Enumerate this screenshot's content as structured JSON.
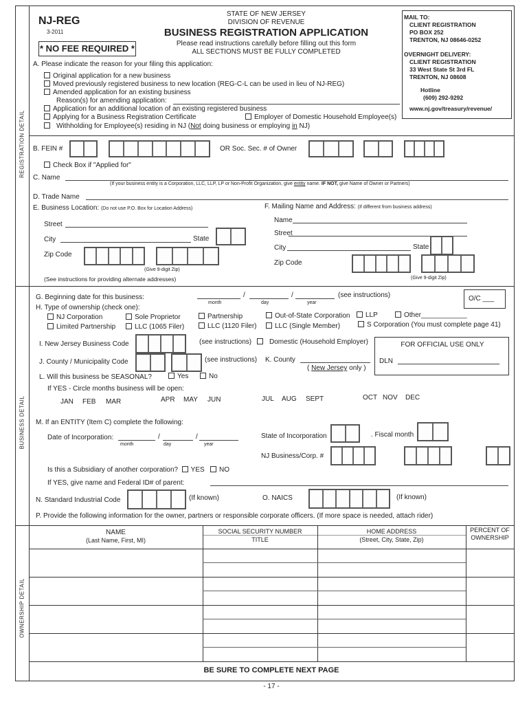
{
  "header": {
    "form_id": "NJ-REG",
    "revision": "3-2011",
    "no_fee": "* NO FEE REQUIRED *",
    "state": "STATE OF NEW JERSEY",
    "division": "DIVISION OF REVENUE",
    "title": "BUSINESS REGISTRATION APPLICATION",
    "instructions": "Please read instructions carefully before filling out this form",
    "all_sections": "ALL SECTIONS MUST BE FULLY COMPLETED"
  },
  "mail_box": {
    "mail_to": "MAIL TO:",
    "mail_lines": [
      "CLIENT REGISTRATION",
      "PO BOX 252",
      "TRENTON, NJ 08646-0252"
    ],
    "overnight": "OVERNIGHT DELIVERY:",
    "overnight_lines": [
      "CLIENT REGISTRATION",
      "33 West State St 3rd  FL",
      "TRENTON, NJ 08608"
    ],
    "hotline_label": "Hotline",
    "hotline": "(609) 292-9292",
    "website": "www.nj.gov/treasury/revenue/"
  },
  "sidebar": {
    "registration": "REGISTRATION DETAIL",
    "business": "BUSINESS DETAIL",
    "ownership": "OWNERSHIP DETAIL"
  },
  "section_a": {
    "label": "A.  Please indicate the reason for your filing this application:",
    "options": [
      "Original application for a new business",
      "Moved previously registered business to new location (REG-C-L can be used in lieu of NJ-REG)",
      "Amended application for an existing business",
      "Application for an additional location of an existing registered business",
      "Applying for a Business Registration Certificate",
      "Employer of Domestic Household Employee(s)"
    ],
    "reason_label": "Reason(s) for amending application:",
    "withholding_pre": "Withholding for Employee(s) residing in NJ (",
    "withholding_not": "Not",
    "withholding_mid": " doing business or employing ",
    "withholding_in": "in",
    "withholding_post": " NJ)"
  },
  "section_b": {
    "fein_label": "B.  FEIN #",
    "or_ssn": "OR   Soc. Sec. # of Owner",
    "applied_for": "Check Box if \"Applied for\""
  },
  "section_c": {
    "label": "C.  Name",
    "note_pre": "(If your business entity is a Corporation, LLC, LLP, LP or Non-Profit Organization, give ",
    "note_entity": "entity",
    "note_mid": " name.  ",
    "note_ifnot": "IF NOT,",
    "note_post": " give Name of Owner or Partners)"
  },
  "section_d": {
    "label": "D.  Trade Name"
  },
  "section_e": {
    "label": "E.  Business Location:",
    "note": "(Do not use P.O. Box for Location Address)",
    "street": "Street",
    "city": "City",
    "state": "State",
    "zip": "Zip Code",
    "zip_note": "(Give 9-digit Zip)",
    "alt_note": "(See instructions for providing alternate addresses)"
  },
  "section_f": {
    "label": "F.  Mailing Name and Address:",
    "note": "(If different from business address)",
    "name": "Name",
    "street": "Street",
    "city": "City",
    "state": "State",
    "zip": "Zip Code",
    "zip_note": "(Give 9-digit Zip)"
  },
  "section_g": {
    "label": "G.  Beginning date for this business:",
    "month": "month",
    "day": "day",
    "year": "year",
    "slash": "/",
    "see": "(see instructions)",
    "oc": "O/C ___"
  },
  "section_h": {
    "label": "H.  Type of ownership (check one):",
    "row1": [
      "NJ Corporation",
      "Sole Proprietor",
      "Partnership",
      "Out-of-State Corporation",
      "LLP",
      "Other____________"
    ],
    "row2": [
      "Limited Partnership",
      "LLC (1065 Filer)",
      "LLC (1120 Filer)",
      "LLC (Single Member)",
      "S Corporation (You must complete page 41)"
    ]
  },
  "section_i": {
    "label": "I.  New Jersey Business Code",
    "see": "(see instructions)",
    "domestic": "Domestic (Household Employer)"
  },
  "official": {
    "title": "FOR OFFICIAL USE ONLY",
    "dln": "DLN"
  },
  "section_j": {
    "label": "J.  County / Municipality Code",
    "see": "(see instructions)",
    "county": "K.  County",
    "nj_pre": "( ",
    "nj": "New Jersey",
    "nj_post": " only )"
  },
  "section_l": {
    "label": "L.  Will this business be SEASONAL?",
    "yes": "Yes",
    "no": "No",
    "circle": "If YES - Circle months business will be open:",
    "months": [
      "JAN",
      "FEB",
      "MAR",
      "APR",
      "MAY",
      "JUN",
      "JUL",
      "AUG",
      "SEPT",
      "OCT",
      "NOV",
      "DEC"
    ]
  },
  "section_m": {
    "label": "M.  If an ENTITY (Item C) complete the following:",
    "date_inc": "Date of Incorporation:",
    "month": "month",
    "day": "day",
    "year": "year",
    "slash": "/",
    "state_inc": "State of Incorporation",
    "fiscal": ". Fiscal month",
    "corp_no": "NJ Business/Corp. #",
    "subsidiary": "Is this a Subsidiary of another corporation?",
    "yes": "YES",
    "no": "NO",
    "parent": "If YES, give name and Federal ID# of parent:"
  },
  "section_n": {
    "label": "N.  Standard Industrial Code",
    "if_known": "(If known)"
  },
  "section_o": {
    "label": "O.  NAICS",
    "if_known": "(If known)"
  },
  "section_p": {
    "label": "P.  Provide the following information for the owner, partners or responsible corporate officers.  (If more space is needed, attach rider)"
  },
  "owners_table": {
    "col_name": "NAME",
    "col_name_sub": "(Last Name, First, MI)",
    "col_ssn": "SOCIAL SECURITY NUMBER",
    "col_title": "TITLE",
    "col_address": "HOME ADDRESS",
    "col_address_sub": "(Street, City, State, Zip)",
    "col_percent": "PERCENT OF",
    "col_percent_2": "OWNERSHIP"
  },
  "footer": {
    "next_page": "BE SURE TO COMPLETE NEXT PAGE",
    "page_number": "- 17 -"
  }
}
